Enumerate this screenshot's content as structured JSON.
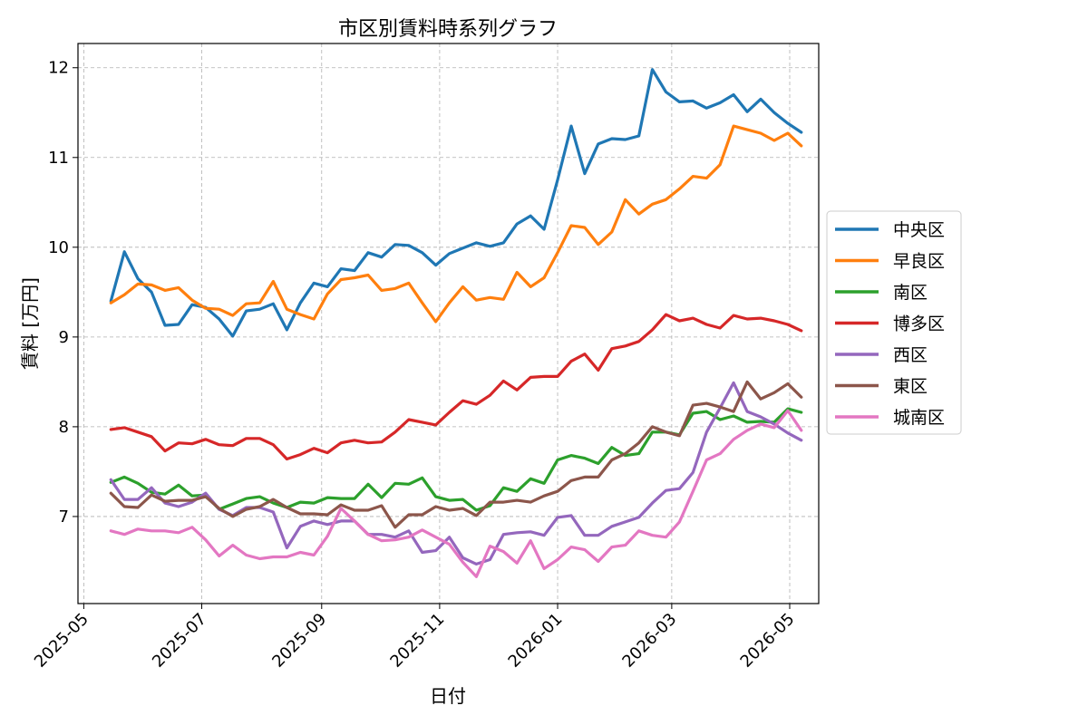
{
  "chart_data": {
    "type": "line",
    "title": "市区別賃料時系列グラフ",
    "xlabel": "日付",
    "ylabel": "賃料 [万円]",
    "x_range": [
      "2025-04-28",
      "2026-05-16"
    ],
    "ylim": [
      6.03,
      12.27
    ],
    "grid": true,
    "legend_position": "outside-right",
    "x_ticks": [
      "2025-05",
      "2025-07",
      "2025-09",
      "2025-11",
      "2026-01",
      "2026-03",
      "2026-05"
    ],
    "y_ticks": [
      7,
      8,
      9,
      10,
      11,
      12
    ],
    "dates": [
      "2025-05-15",
      "2025-05-22",
      "2025-05-29",
      "2025-06-05",
      "2025-06-12",
      "2025-06-19",
      "2025-06-26",
      "2025-07-03",
      "2025-07-10",
      "2025-07-17",
      "2025-07-24",
      "2025-07-31",
      "2025-08-07",
      "2025-08-14",
      "2025-08-21",
      "2025-08-28",
      "2025-09-04",
      "2025-09-11",
      "2025-09-18",
      "2025-09-25",
      "2025-10-02",
      "2025-10-09",
      "2025-10-16",
      "2025-10-23",
      "2025-10-30",
      "2025-11-06",
      "2025-11-13",
      "2025-11-20",
      "2025-11-27",
      "2025-12-04",
      "2025-12-11",
      "2025-12-18",
      "2025-12-25",
      "2026-01-01",
      "2026-01-08",
      "2026-01-15",
      "2026-01-22",
      "2026-01-29",
      "2026-02-05",
      "2026-02-12",
      "2026-02-19",
      "2026-02-26",
      "2026-03-05",
      "2026-03-12",
      "2026-03-19",
      "2026-03-26",
      "2026-04-02",
      "2026-04-09",
      "2026-04-16",
      "2026-04-23",
      "2026-04-30",
      "2026-05-07"
    ],
    "series": [
      {
        "name": "中央区",
        "color": "#1f77b4",
        "values": [
          9.4,
          9.95,
          9.65,
          9.5,
          9.13,
          9.14,
          9.36,
          9.33,
          9.2,
          9.01,
          9.29,
          9.31,
          9.37,
          9.08,
          9.38,
          9.6,
          9.56,
          9.76,
          9.74,
          9.94,
          9.89,
          10.03,
          10.02,
          9.94,
          9.8,
          9.93,
          9.99,
          10.05,
          10.01,
          10.05,
          10.26,
          10.35,
          10.2,
          10.75,
          11.35,
          10.82,
          11.15,
          11.21,
          11.2,
          11.24,
          11.98,
          11.73,
          11.62,
          11.63,
          11.55,
          11.61,
          11.7,
          11.51,
          11.65,
          11.5,
          11.38,
          11.28
        ]
      },
      {
        "name": "早良区",
        "color": "#ff7f0e",
        "values": [
          9.38,
          9.47,
          9.59,
          9.58,
          9.52,
          9.55,
          9.41,
          9.32,
          9.31,
          9.24,
          9.37,
          9.38,
          9.62,
          9.31,
          9.25,
          9.2,
          9.48,
          9.64,
          9.66,
          9.69,
          9.52,
          9.54,
          9.6,
          9.38,
          9.17,
          9.38,
          9.56,
          9.41,
          9.44,
          9.42,
          9.72,
          9.56,
          9.66,
          9.94,
          10.24,
          10.22,
          10.03,
          10.17,
          10.53,
          10.37,
          10.48,
          10.53,
          10.65,
          10.79,
          10.77,
          10.92,
          11.35,
          11.31,
          11.27,
          11.19,
          11.27,
          11.13
        ]
      },
      {
        "name": "南区",
        "color": "#2ca02c",
        "values": [
          7.38,
          7.44,
          7.37,
          7.27,
          7.25,
          7.35,
          7.23,
          7.24,
          7.08,
          7.14,
          7.2,
          7.22,
          7.15,
          7.1,
          7.16,
          7.15,
          7.21,
          7.2,
          7.2,
          7.36,
          7.21,
          7.37,
          7.36,
          7.43,
          7.22,
          7.18,
          7.19,
          7.07,
          7.12,
          7.32,
          7.28,
          7.42,
          7.37,
          7.63,
          7.68,
          7.65,
          7.59,
          7.77,
          7.68,
          7.7,
          7.94,
          7.94,
          7.91,
          8.15,
          8.17,
          8.08,
          8.12,
          8.05,
          8.06,
          8.05,
          8.2,
          8.16
        ]
      },
      {
        "name": "博多区",
        "color": "#d62728",
        "values": [
          7.97,
          7.99,
          7.94,
          7.89,
          7.73,
          7.82,
          7.81,
          7.86,
          7.8,
          7.79,
          7.87,
          7.87,
          7.8,
          7.64,
          7.69,
          7.76,
          7.71,
          7.82,
          7.85,
          7.82,
          7.83,
          7.94,
          8.08,
          8.05,
          8.02,
          8.16,
          8.29,
          8.25,
          8.35,
          8.51,
          8.41,
          8.55,
          8.56,
          8.56,
          8.73,
          8.81,
          8.63,
          8.87,
          8.9,
          8.95,
          9.08,
          9.25,
          9.18,
          9.21,
          9.14,
          9.1,
          9.24,
          9.2,
          9.21,
          9.18,
          9.14,
          9.07
        ]
      },
      {
        "name": "西区",
        "color": "#9467bd",
        "values": [
          7.41,
          7.19,
          7.19,
          7.32,
          7.15,
          7.11,
          7.16,
          7.26,
          7.08,
          7.01,
          7.1,
          7.1,
          7.05,
          6.65,
          6.89,
          6.95,
          6.91,
          6.95,
          6.95,
          6.8,
          6.8,
          6.77,
          6.84,
          6.6,
          6.62,
          6.77,
          6.54,
          6.47,
          6.52,
          6.8,
          6.82,
          6.83,
          6.79,
          6.99,
          7.01,
          6.79,
          6.79,
          6.89,
          6.94,
          6.99,
          7.15,
          7.29,
          7.31,
          7.49,
          7.94,
          8.21,
          8.49,
          8.17,
          8.11,
          8.03,
          7.93,
          7.85
        ]
      },
      {
        "name": "東区",
        "color": "#8c564b",
        "values": [
          7.26,
          7.11,
          7.1,
          7.24,
          7.17,
          7.18,
          7.18,
          7.22,
          7.09,
          7.0,
          7.08,
          7.11,
          7.19,
          7.1,
          7.03,
          7.03,
          7.02,
          7.13,
          7.07,
          7.07,
          7.12,
          6.88,
          7.02,
          7.02,
          7.11,
          7.07,
          7.09,
          7.01,
          7.16,
          7.16,
          7.18,
          7.16,
          7.23,
          7.28,
          7.4,
          7.44,
          7.44,
          7.63,
          7.7,
          7.82,
          8.0,
          7.94,
          7.9,
          8.24,
          8.26,
          8.22,
          8.17,
          8.5,
          8.31,
          8.38,
          8.48,
          8.33
        ]
      },
      {
        "name": "城南区",
        "color": "#e377c2",
        "values": [
          6.84,
          6.8,
          6.86,
          6.84,
          6.84,
          6.82,
          6.88,
          6.74,
          6.56,
          6.68,
          6.57,
          6.53,
          6.55,
          6.55,
          6.6,
          6.57,
          6.78,
          7.09,
          6.95,
          6.8,
          6.73,
          6.74,
          6.77,
          6.85,
          6.77,
          6.69,
          6.49,
          6.33,
          6.67,
          6.61,
          6.48,
          6.73,
          6.42,
          6.52,
          6.66,
          6.63,
          6.5,
          6.66,
          6.68,
          6.84,
          6.79,
          6.77,
          6.94,
          7.28,
          7.63,
          7.7,
          7.86,
          7.96,
          8.03,
          7.99,
          8.18,
          7.96
        ]
      }
    ]
  }
}
